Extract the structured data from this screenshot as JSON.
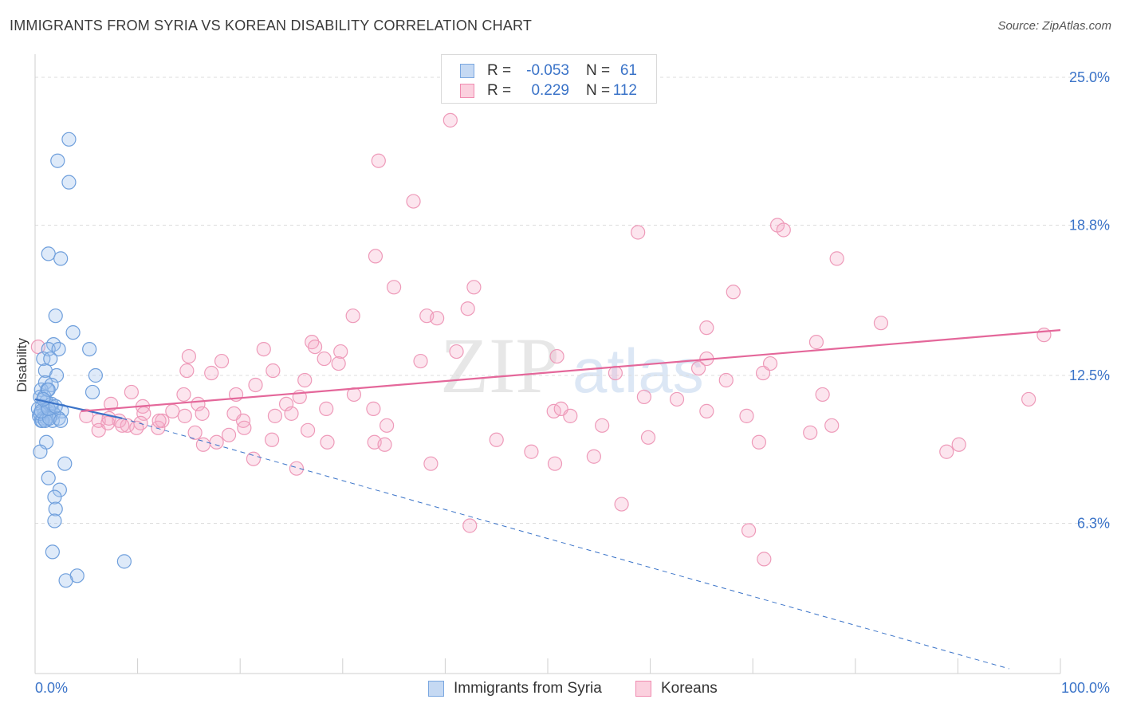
{
  "chart_data": {
    "type": "scatter",
    "title": "IMMIGRANTS FROM SYRIA VS KOREAN DISABILITY CORRELATION CHART",
    "source": "Source: ZipAtlas.com",
    "xlabel": "",
    "ylabel": "Disability",
    "xlim": [
      0,
      100
    ],
    "ylim": [
      0,
      26.3
    ],
    "x_tick_labels": [
      "0.0%",
      "100.0%"
    ],
    "y_ticks": [
      {
        "value": 6.3,
        "label": "6.3%"
      },
      {
        "value": 12.5,
        "label": "12.5%"
      },
      {
        "value": 18.8,
        "label": "18.8%"
      },
      {
        "value": 25.0,
        "label": "25.0%"
      }
    ],
    "watermark": {
      "part1": "ZIP",
      "part2": "atlas"
    },
    "legend": [
      {
        "series": "Immigrants from Syria",
        "r_label": "R =",
        "r_value": "-0.053",
        "n_label": "N =",
        "n_value": "61"
      },
      {
        "series": "Koreans",
        "r_label": "R =",
        "r_value": "0.229",
        "n_label": "N =",
        "n_value": "112"
      }
    ],
    "series": [
      {
        "name": "Immigrants from Syria",
        "color": "#7aa7e0",
        "line_color": "#3a73c8",
        "trend": {
          "x0": 0,
          "y0": 11.5,
          "x1": 8.5,
          "y1": 10.7,
          "dashed_to_x": 95,
          "dashed_to_y": 0.2
        },
        "points": [
          [
            3.3,
            22.4
          ],
          [
            2.2,
            21.5
          ],
          [
            3.3,
            20.6
          ],
          [
            1.3,
            17.6
          ],
          [
            2.5,
            17.4
          ],
          [
            2.0,
            15.0
          ],
          [
            3.7,
            14.3
          ],
          [
            1.8,
            13.8
          ],
          [
            1.3,
            13.6
          ],
          [
            2.3,
            13.6
          ],
          [
            5.3,
            13.6
          ],
          [
            0.8,
            13.2
          ],
          [
            1.5,
            13.2
          ],
          [
            1.0,
            12.7
          ],
          [
            2.1,
            12.5
          ],
          [
            5.9,
            12.5
          ],
          [
            1.0,
            12.2
          ],
          [
            1.6,
            12.1
          ],
          [
            0.6,
            11.9
          ],
          [
            1.2,
            11.9
          ],
          [
            5.6,
            11.8
          ],
          [
            0.5,
            11.6
          ],
          [
            1.1,
            11.4
          ],
          [
            0.7,
            11.2
          ],
          [
            1.6,
            11.2
          ],
          [
            0.3,
            11.1
          ],
          [
            1.2,
            11.0
          ],
          [
            2.6,
            11.0
          ],
          [
            0.9,
            10.9
          ],
          [
            1.8,
            10.9
          ],
          [
            0.4,
            10.8
          ],
          [
            1.5,
            10.8
          ],
          [
            0.8,
            10.7
          ],
          [
            1.1,
            10.7
          ],
          [
            0.6,
            10.6
          ],
          [
            1.7,
            10.6
          ],
          [
            2.3,
            10.7
          ],
          [
            0.7,
            10.6
          ],
          [
            0.5,
            10.9
          ],
          [
            1.0,
            10.6
          ],
          [
            1.4,
            10.7
          ],
          [
            2.5,
            10.6
          ],
          [
            0.9,
            11.6
          ],
          [
            1.6,
            11.3
          ],
          [
            0.6,
            11.0
          ],
          [
            1.3,
            11.1
          ],
          [
            1.1,
            9.7
          ],
          [
            0.5,
            9.3
          ],
          [
            2.9,
            8.8
          ],
          [
            1.3,
            8.2
          ],
          [
            2.4,
            7.7
          ],
          [
            1.9,
            7.4
          ],
          [
            2.0,
            6.9
          ],
          [
            1.9,
            6.4
          ],
          [
            1.7,
            5.1
          ],
          [
            4.1,
            4.1
          ],
          [
            3.0,
            3.9
          ],
          [
            8.7,
            4.7
          ],
          [
            1.3,
            11.9
          ],
          [
            2.0,
            11.2
          ],
          [
            0.8,
            11.5
          ]
        ]
      },
      {
        "name": "Koreans",
        "color": "#f08bb0",
        "line_color": "#e4679a",
        "trend": {
          "x0": 4.5,
          "y0": 11.0,
          "x1": 100,
          "y1": 14.4
        },
        "points": [
          [
            40.5,
            23.2
          ],
          [
            33.5,
            21.5
          ],
          [
            36.9,
            19.8
          ],
          [
            58.8,
            18.5
          ],
          [
            72.4,
            18.8
          ],
          [
            73.0,
            18.6
          ],
          [
            78.2,
            17.4
          ],
          [
            33.2,
            17.5
          ],
          [
            35.0,
            16.2
          ],
          [
            42.8,
            16.2
          ],
          [
            68.1,
            16.0
          ],
          [
            42.2,
            15.3
          ],
          [
            31.0,
            15.0
          ],
          [
            38.2,
            15.0
          ],
          [
            39.2,
            14.9
          ],
          [
            65.5,
            14.5
          ],
          [
            82.5,
            14.7
          ],
          [
            98.4,
            14.2
          ],
          [
            76.2,
            13.9
          ],
          [
            27.0,
            13.9
          ],
          [
            27.3,
            13.7
          ],
          [
            29.8,
            13.5
          ],
          [
            22.3,
            13.6
          ],
          [
            41.1,
            13.5
          ],
          [
            15.0,
            13.3
          ],
          [
            28.2,
            13.2
          ],
          [
            18.2,
            13.1
          ],
          [
            29.6,
            13.0
          ],
          [
            37.6,
            13.1
          ],
          [
            50.9,
            13.3
          ],
          [
            65.5,
            13.2
          ],
          [
            71.7,
            13.0
          ],
          [
            14.8,
            12.7
          ],
          [
            17.2,
            12.6
          ],
          [
            23.2,
            12.7
          ],
          [
            56.6,
            12.6
          ],
          [
            64.7,
            12.8
          ],
          [
            71.0,
            12.6
          ],
          [
            26.3,
            12.3
          ],
          [
            21.5,
            12.1
          ],
          [
            67.4,
            12.3
          ],
          [
            9.4,
            11.8
          ],
          [
            14.5,
            11.7
          ],
          [
            19.6,
            11.7
          ],
          [
            25.8,
            11.6
          ],
          [
            31.1,
            11.7
          ],
          [
            59.4,
            11.6
          ],
          [
            62.6,
            11.5
          ],
          [
            76.8,
            11.7
          ],
          [
            96.9,
            11.5
          ],
          [
            7.4,
            11.3
          ],
          [
            10.5,
            11.2
          ],
          [
            15.9,
            11.3
          ],
          [
            24.5,
            11.3
          ],
          [
            28.4,
            11.1
          ],
          [
            33.0,
            11.1
          ],
          [
            50.6,
            11.0
          ],
          [
            51.3,
            11.1
          ],
          [
            65.5,
            11.0
          ],
          [
            69.4,
            10.8
          ],
          [
            10.6,
            10.9
          ],
          [
            16.3,
            10.9
          ],
          [
            19.4,
            10.9
          ],
          [
            23.4,
            10.8
          ],
          [
            25.0,
            10.9
          ],
          [
            5.0,
            10.8
          ],
          [
            6.2,
            10.6
          ],
          [
            7.1,
            10.5
          ],
          [
            8.2,
            10.6
          ],
          [
            9.0,
            10.4
          ],
          [
            10.3,
            10.5
          ],
          [
            12.0,
            10.3
          ],
          [
            12.4,
            10.6
          ],
          [
            20.3,
            10.6
          ],
          [
            26.6,
            10.2
          ],
          [
            34.3,
            10.4
          ],
          [
            52.2,
            10.8
          ],
          [
            55.3,
            10.4
          ],
          [
            59.8,
            9.9
          ],
          [
            75.6,
            10.1
          ],
          [
            77.7,
            10.4
          ],
          [
            6.2,
            10.2
          ],
          [
            9.9,
            10.3
          ],
          [
            12.1,
            10.6
          ],
          [
            14.6,
            10.8
          ],
          [
            15.6,
            10.1
          ],
          [
            18.9,
            10.0
          ],
          [
            20.4,
            10.3
          ],
          [
            28.5,
            9.7
          ],
          [
            33.1,
            9.7
          ],
          [
            34.1,
            9.6
          ],
          [
            45.0,
            9.8
          ],
          [
            48.4,
            9.3
          ],
          [
            54.5,
            9.1
          ],
          [
            70.6,
            9.7
          ],
          [
            88.9,
            9.3
          ],
          [
            90.1,
            9.6
          ],
          [
            16.4,
            9.6
          ],
          [
            17.7,
            9.7
          ],
          [
            23.1,
            9.8
          ],
          [
            21.3,
            9.0
          ],
          [
            25.5,
            8.6
          ],
          [
            38.6,
            8.8
          ],
          [
            50.7,
            8.8
          ],
          [
            57.2,
            7.1
          ],
          [
            42.4,
            6.2
          ],
          [
            69.6,
            6.0
          ],
          [
            71.1,
            4.8
          ],
          [
            0.3,
            13.7
          ],
          [
            7.2,
            10.7
          ],
          [
            8.5,
            10.4
          ],
          [
            13.4,
            11.0
          ]
        ]
      }
    ]
  }
}
